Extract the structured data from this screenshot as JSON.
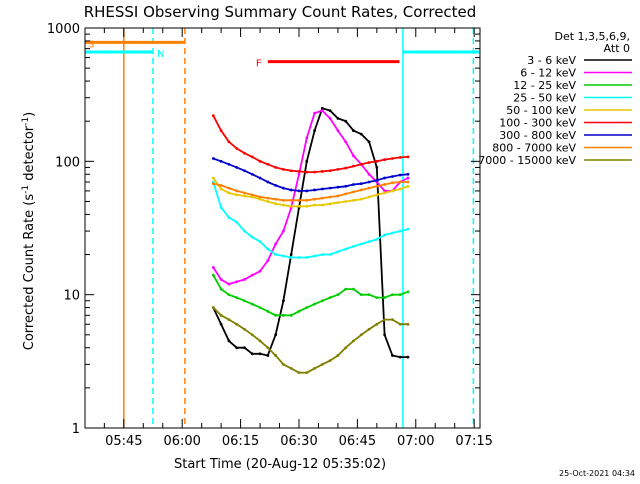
{
  "chart_data": {
    "type": "line",
    "title": "RHESSI Observing Summary Count Rates, Corrected",
    "xlabel": "Start Time (20-Aug-12 05:35:02)",
    "ylabel_main": "Corrected Count Rate (s",
    "ylabel_sup1": "-1",
    "ylabel_mid": " detector",
    "ylabel_sup2": "-1",
    "ylabel_end": ")",
    "timestamp": "25-Oct-2021 04:34",
    "y_scale": "log",
    "ylim": [
      1,
      1000
    ],
    "xlim_min": [
      35.03,
      136.5
    ],
    "xtick_values": [
      45,
      60,
      75,
      90,
      105,
      120,
      135
    ],
    "xtick_labels": [
      "05:45",
      "06:00",
      "06:15",
      "06:30",
      "06:45",
      "07:00",
      "07:15"
    ],
    "ytick_values": [
      1,
      10,
      100,
      1000
    ],
    "ytick_labels": [
      "1",
      "10",
      "100",
      "1000"
    ],
    "legend_header": [
      "Det 1,3,5,6,9,",
      "Att 0"
    ],
    "series": [
      {
        "name": "3 - 6 keV",
        "color": "#000000",
        "x": [
          68,
          70,
          72,
          74,
          76,
          78,
          80,
          82,
          84,
          86,
          88,
          90,
          92,
          94,
          96,
          98,
          100,
          102,
          104,
          106,
          108,
          110,
          112,
          114,
          116,
          118
        ],
        "y": [
          8,
          6,
          4.5,
          4,
          4,
          3.6,
          3.6,
          3.5,
          5,
          9,
          20,
          45,
          100,
          170,
          250,
          240,
          210,
          200,
          170,
          160,
          140,
          90,
          5,
          3.5,
          3.4,
          3.4
        ]
      },
      {
        "name": "6 - 12 keV",
        "color": "#ff00ff",
        "x": [
          68,
          70,
          72,
          74,
          76,
          78,
          80,
          82,
          84,
          86,
          88,
          90,
          92,
          94,
          96,
          98,
          100,
          102,
          104,
          106,
          108,
          110,
          112,
          114,
          116,
          118
        ],
        "y": [
          16,
          13,
          12,
          12.5,
          13,
          14,
          15,
          18,
          24,
          30,
          45,
          80,
          150,
          230,
          240,
          210,
          170,
          140,
          110,
          95,
          80,
          70,
          60,
          60,
          70,
          75
        ]
      },
      {
        "name": "12 - 25 keV",
        "color": "#00cc00",
        "x": [
          68,
          70,
          72,
          74,
          76,
          78,
          80,
          82,
          84,
          86,
          88,
          90,
          92,
          94,
          96,
          98,
          100,
          102,
          104,
          106,
          108,
          110,
          112,
          114,
          116,
          118
        ],
        "y": [
          14,
          11,
          10,
          9.5,
          9,
          8.5,
          8,
          7.5,
          7,
          7,
          7,
          7.5,
          8,
          8.5,
          9,
          9.5,
          10,
          11,
          11,
          10,
          10,
          9.5,
          9.5,
          10,
          10,
          10.5
        ]
      },
      {
        "name": "25 - 50 keV",
        "color": "#00ffff",
        "x": [
          68,
          70,
          72,
          74,
          76,
          78,
          80,
          82,
          84,
          86,
          88,
          90,
          92,
          94,
          96,
          98,
          100,
          102,
          104,
          106,
          108,
          110,
          112,
          114,
          116,
          118
        ],
        "y": [
          70,
          45,
          38,
          35,
          30,
          27,
          25,
          22,
          20,
          19.5,
          19,
          19,
          19,
          19.5,
          20,
          20,
          21,
          22,
          23,
          24,
          25,
          26,
          28,
          29,
          30,
          31
        ]
      },
      {
        "name": "50 - 100 keV",
        "color": "#e6c800",
        "x": [
          68,
          70,
          72,
          74,
          76,
          78,
          80,
          82,
          84,
          86,
          88,
          90,
          92,
          94,
          96,
          98,
          100,
          102,
          104,
          106,
          108,
          110,
          112,
          114,
          116,
          118
        ],
        "y": [
          75,
          62,
          58,
          56,
          55,
          54,
          52,
          50,
          48,
          47,
          46,
          46,
          46,
          47,
          47,
          48,
          49,
          50,
          51,
          52,
          54,
          56,
          58,
          60,
          62,
          65
        ]
      },
      {
        "name": "100 - 300 keV",
        "color": "#ff0000",
        "x": [
          68,
          70,
          72,
          74,
          76,
          78,
          80,
          82,
          84,
          86,
          88,
          90,
          92,
          94,
          96,
          98,
          100,
          102,
          104,
          106,
          108,
          110,
          112,
          114,
          116,
          118
        ],
        "y": [
          220,
          170,
          140,
          125,
          115,
          108,
          100,
          95,
          90,
          87,
          85,
          84,
          83,
          83,
          84,
          85,
          87,
          89,
          92,
          95,
          98,
          100,
          103,
          105,
          107,
          108
        ]
      },
      {
        "name": "300 - 800 keV",
        "color": "#0000cc",
        "x": [
          68,
          70,
          72,
          74,
          76,
          78,
          80,
          82,
          84,
          86,
          88,
          90,
          92,
          94,
          96,
          98,
          100,
          102,
          104,
          106,
          108,
          110,
          112,
          114,
          116,
          118
        ],
        "y": [
          105,
          100,
          95,
          90,
          85,
          80,
          75,
          70,
          66,
          63,
          61,
          60,
          60,
          61,
          62,
          63,
          64,
          65,
          67,
          68,
          70,
          72,
          75,
          77,
          79,
          80
        ]
      },
      {
        "name": "800 - 7000 keV",
        "color": "#ff8000",
        "x": [
          68,
          70,
          72,
          74,
          76,
          78,
          80,
          82,
          84,
          86,
          88,
          90,
          92,
          94,
          96,
          98,
          100,
          102,
          104,
          106,
          108,
          110,
          112,
          114,
          116,
          118
        ],
        "y": [
          68,
          66,
          63,
          60,
          58,
          56,
          54,
          53,
          52,
          51,
          51,
          51,
          51,
          52,
          53,
          54,
          55,
          57,
          59,
          61,
          63,
          65,
          67,
          69,
          70,
          70
        ]
      },
      {
        "name": "7000 - 15000 keV",
        "color": "#808000",
        "x": [
          68,
          70,
          72,
          74,
          76,
          78,
          80,
          82,
          84,
          86,
          88,
          90,
          92,
          94,
          96,
          98,
          100,
          102,
          104,
          106,
          108,
          110,
          112,
          114,
          116,
          118
        ],
        "y": [
          8,
          7,
          6.5,
          6,
          5.5,
          5,
          4.5,
          4,
          3.5,
          3,
          2.8,
          2.6,
          2.6,
          2.8,
          3,
          3.2,
          3.5,
          4,
          4.5,
          5,
          5.5,
          6,
          6.5,
          6.5,
          6,
          6
        ]
      }
    ],
    "markers": [
      {
        "label": "S",
        "color": "#ff8000",
        "x_start": 35.03,
        "x_end": 60.7,
        "y": 780
      },
      {
        "label": "N",
        "color": "#00ffff",
        "x_start": 35.03,
        "x_end": 52.5,
        "y": 660
      },
      {
        "label": "N",
        "color": "#00ffff",
        "x_start": 116.7,
        "x_end": 136.5,
        "y": 660
      },
      {
        "label": "F",
        "color": "#ff0000",
        "x_start": 82,
        "x_end": 115.8,
        "y": 560
      }
    ],
    "vertical_lines": [
      {
        "x": 45.0,
        "color": "#ff8000",
        "style": "solid"
      },
      {
        "x": 52.5,
        "color": "#00ffff",
        "style": "dashed"
      },
      {
        "x": 60.7,
        "color": "#ff8000",
        "style": "dashed"
      },
      {
        "x": 116.7,
        "color": "#00ffff",
        "style": "solid"
      },
      {
        "x": 134.8,
        "color": "#00ffff",
        "style": "dashed"
      }
    ]
  }
}
